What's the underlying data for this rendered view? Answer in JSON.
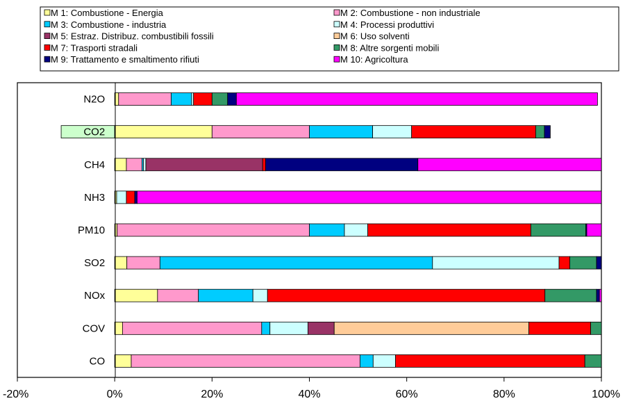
{
  "chart_data": {
    "type": "bar",
    "orientation": "horizontal",
    "stacked": true,
    "title": "",
    "xlabel": "",
    "ylabel": "",
    "xlim": [
      -20,
      100
    ],
    "x_ticks": [
      "-20%",
      "0%",
      "20%",
      "40%",
      "60%",
      "80%",
      "100%"
    ],
    "grid": false,
    "legend_position": "top",
    "categories": [
      "N2O",
      "CO2",
      "CH4",
      "NH3",
      "PM10",
      "SO2",
      "NOx",
      "COV",
      "CO"
    ],
    "series": [
      {
        "name": "M 1: Combustione - Energia",
        "color": "#FFFF99",
        "values": [
          0.8,
          20,
          2.4,
          0.4,
          0.5,
          2.5,
          8.8,
          1.6,
          3.4
        ]
      },
      {
        "name": "M 2: Combustione - non industriale",
        "color": "#FF99CC",
        "values": [
          10.8,
          20,
          3.2,
          0,
          39.5,
          6.8,
          8.4,
          28.6,
          47
        ]
      },
      {
        "name": "M 3: Combustione - industria",
        "color": "#00CCFF",
        "values": [
          4.2,
          13,
          0.3,
          0,
          7.2,
          56,
          11.2,
          1.7,
          2.7
        ]
      },
      {
        "name": "M 4: Processi produttivi",
        "color": "#CCFFFF",
        "values": [
          0.4,
          8,
          0.5,
          2,
          4.8,
          26,
          3,
          7.8,
          4.6
        ]
      },
      {
        "name": "M 5: Estraz. Distribuz. combustibili fossili",
        "color": "#993366",
        "values": [
          0,
          0,
          24,
          0,
          0,
          0,
          0,
          5.4,
          0
        ]
      },
      {
        "name": "M 6: Uso solventi",
        "color": "#FFCC99",
        "values": [
          0,
          0,
          0,
          0,
          0,
          0,
          0,
          40,
          0
        ]
      },
      {
        "name": "M 7: Trasporti stradali",
        "color": "#FF0000",
        "values": [
          3.8,
          25.5,
          0.6,
          1.7,
          33.5,
          2.2,
          57,
          12.7,
          38.9
        ]
      },
      {
        "name": "M 8: Altre sorgenti mobili",
        "color": "#339966",
        "values": [
          3.2,
          1.8,
          0,
          0,
          11.3,
          5.5,
          10.6,
          2.2,
          3.4
        ]
      },
      {
        "name": "M 9: Trattamento e smaltimento rifiuti",
        "color": "#000080",
        "values": [
          1.8,
          1.2,
          31.3,
          0.5,
          0.2,
          1,
          0.6,
          0,
          0
        ]
      },
      {
        "name": "M 10: Agricoltura",
        "color": "#FF00FF",
        "values": [
          74.2,
          0,
          37.7,
          95.4,
          3,
          0,
          0.4,
          0,
          0
        ]
      }
    ],
    "negative_values": {
      "CO2": -11
    }
  },
  "colors": {
    "plot_border": "#000000",
    "co2_sink": "#CCFFCC"
  }
}
